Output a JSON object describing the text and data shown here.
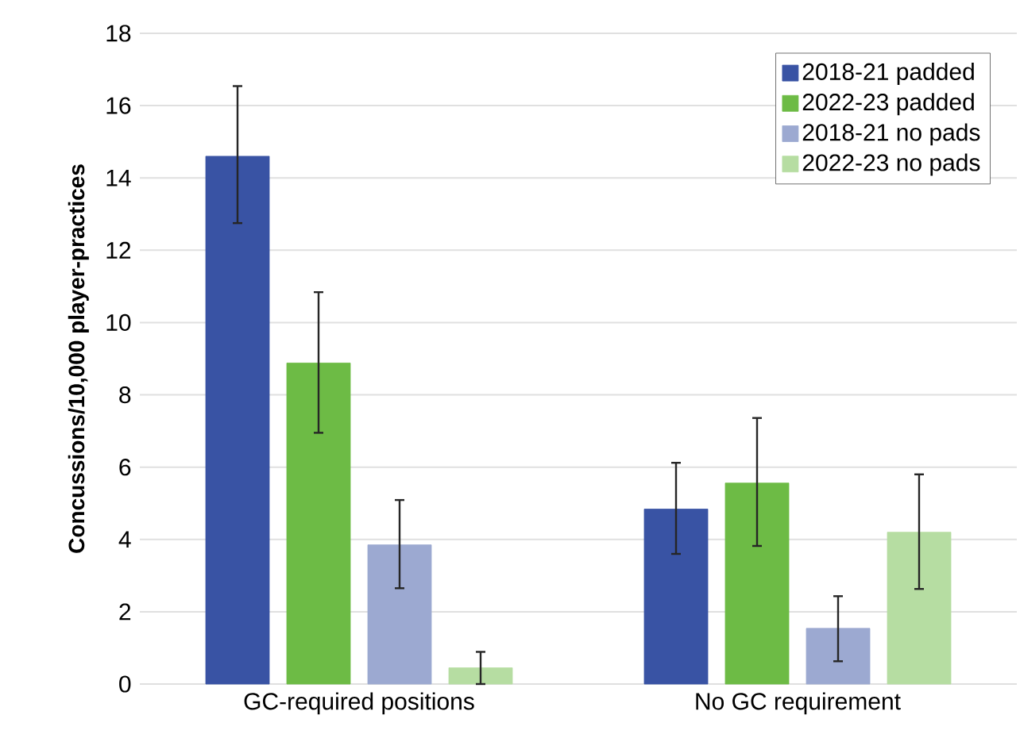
{
  "chart_data": {
    "type": "bar",
    "ylabel": "Concussions/10,000 player-practices",
    "categories": [
      "GC-required positions",
      "No GC requirement"
    ],
    "series": [
      {
        "name": "2018-21 padded",
        "color": "#3953a4",
        "values": [
          14.6,
          4.84
        ],
        "errors": [
          [
            12.75,
            16.54
          ],
          [
            3.6,
            6.12
          ]
        ]
      },
      {
        "name": "2022-23 padded",
        "color": "#6dbb45",
        "values": [
          8.88,
          5.56
        ],
        "errors": [
          [
            6.95,
            10.84
          ],
          [
            3.82,
            7.36
          ]
        ]
      },
      {
        "name": "2018-21 no pads",
        "color": "#9ca9d1",
        "values": [
          3.85,
          1.54
        ],
        "errors": [
          [
            2.65,
            5.09
          ],
          [
            0.63,
            2.43
          ]
        ]
      },
      {
        "name": "2022-23 no pads",
        "color": "#b6dda2",
        "values": [
          0.45,
          4.2
        ],
        "errors": [
          [
            0.0,
            0.89
          ],
          [
            2.63,
            5.8
          ]
        ]
      }
    ],
    "ylim": [
      0,
      18
    ],
    "yticks": [
      0,
      2,
      4,
      6,
      8,
      10,
      12,
      14,
      16,
      18
    ],
    "grid": "y",
    "legend": "top right"
  }
}
